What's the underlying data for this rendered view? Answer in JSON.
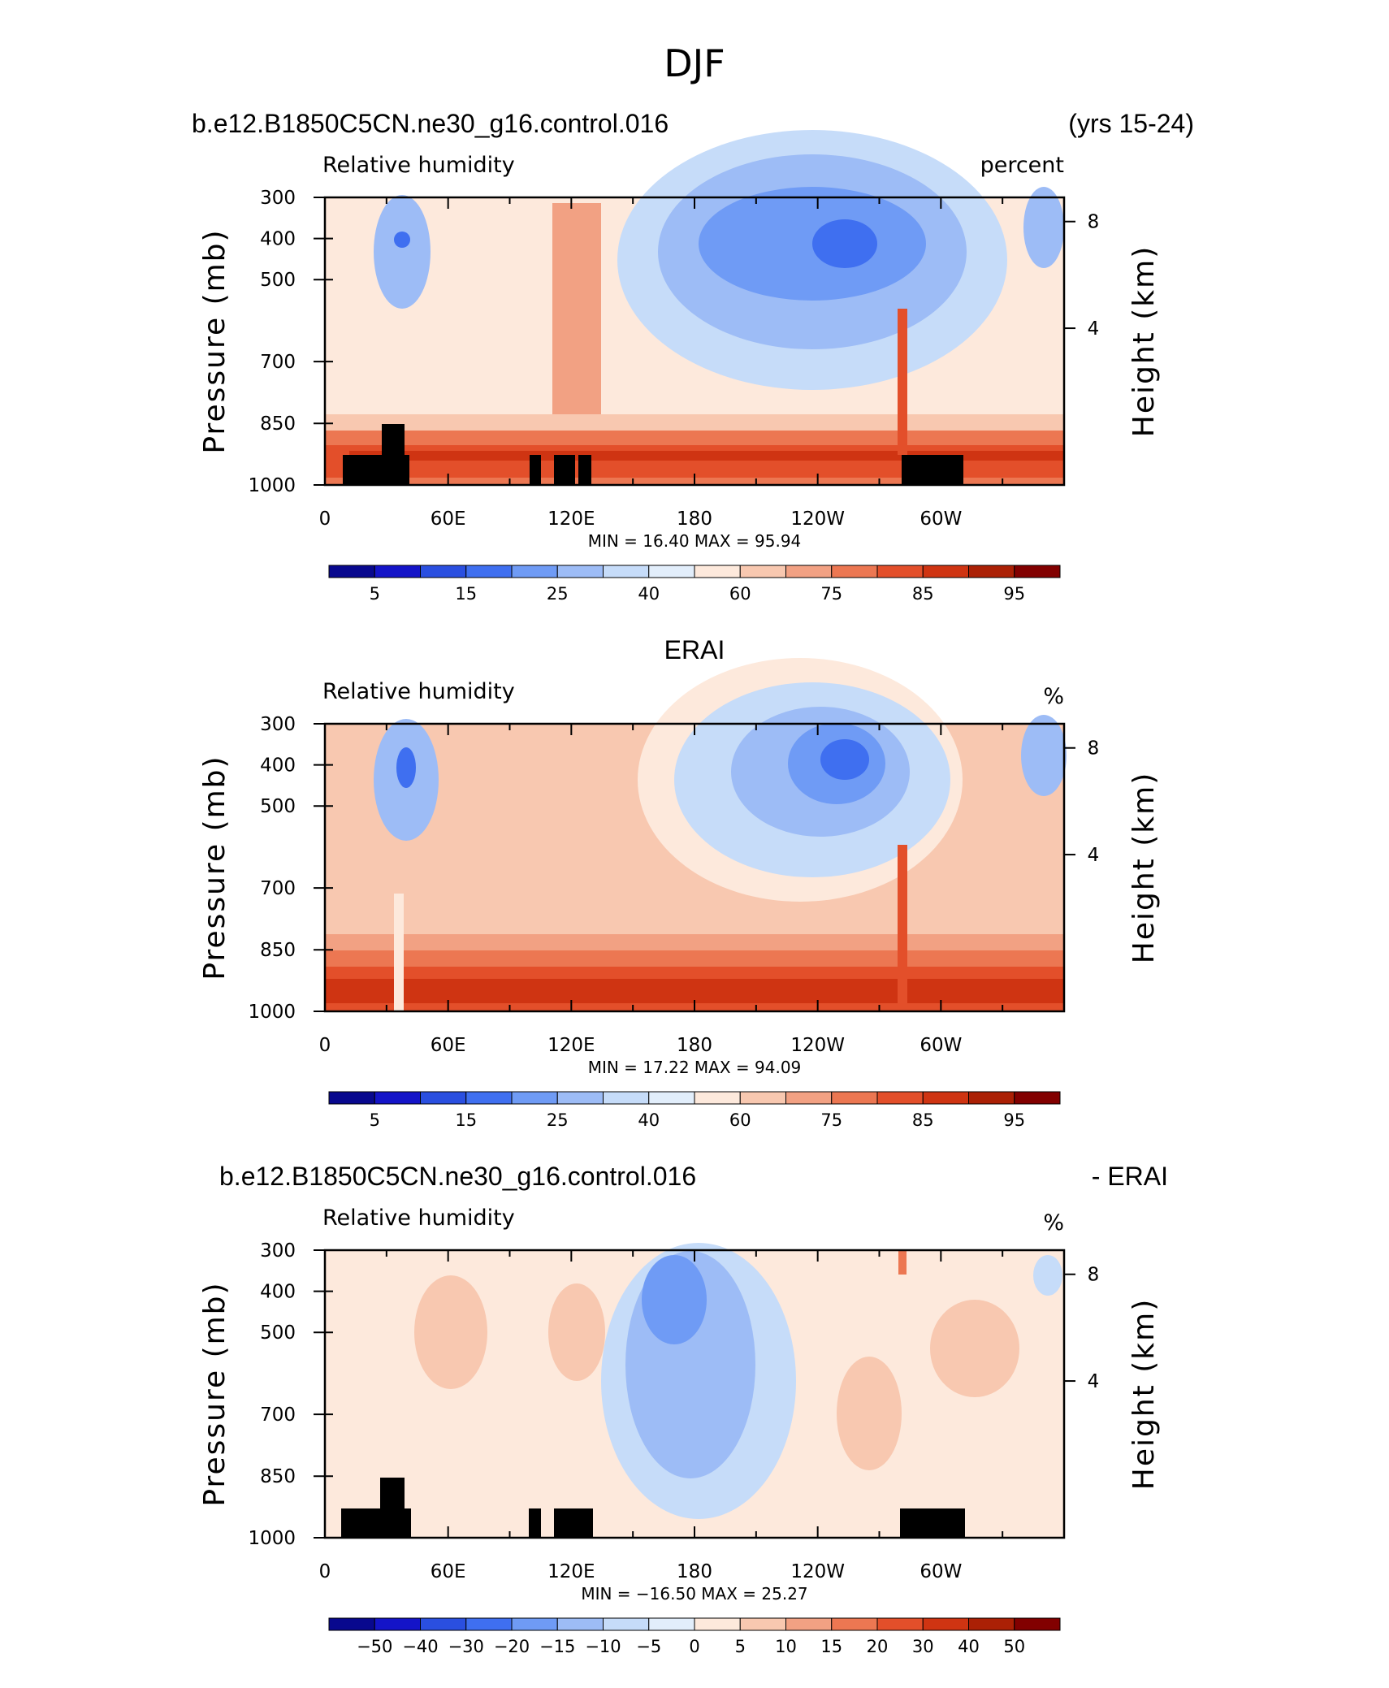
{
  "figure_title": "DJF",
  "panels": [
    {
      "title_left": "b.e12.B1850C5CN.ne30_g16.control.016",
      "title_center": "",
      "title_right": "(yrs 15-24)",
      "variable_label": "Relative humidity",
      "units_label": "percent",
      "minmax": "MIN =    16.40   MAX =    95.94"
    },
    {
      "title_left": "",
      "title_center": "ERAI",
      "title_right": "",
      "variable_label": "Relative humidity",
      "units_label": "%",
      "minmax": "MIN =    17.22   MAX =    94.09"
    },
    {
      "title_left": "b.e12.B1850C5CN.ne30_g16.control.016",
      "title_center": "",
      "title_right": "- ERAI",
      "variable_label": "Relative humidity",
      "units_label": "%",
      "minmax": "MIN =  −16.50   MAX =    25.27"
    }
  ],
  "chart_data": [
    {
      "type": "heatmap",
      "title": "b.e12.B1850C5CN.ne30_g16.control.016",
      "subtitle": "(yrs 15-24)",
      "variable": "Relative humidity",
      "units": "percent",
      "ylabel": "Pressure (mb)",
      "ylabel_right": "Height (km)",
      "x_tick_labels": [
        "0",
        "60E",
        "120E",
        "180",
        "120W",
        "60W"
      ],
      "y_tick_labels": [
        "300",
        "400",
        "500",
        "700",
        "850",
        "1000"
      ],
      "right_tick_labels": [
        "8",
        "4"
      ],
      "min": 16.4,
      "max": 95.94,
      "colorbar_labels": [
        "5",
        "15",
        "25",
        "40",
        "60",
        "75",
        "85",
        "95"
      ]
    },
    {
      "type": "heatmap",
      "title": "ERAI",
      "variable": "Relative humidity",
      "units": "%",
      "ylabel": "Pressure (mb)",
      "ylabel_right": "Height (km)",
      "x_tick_labels": [
        "0",
        "60E",
        "120E",
        "180",
        "120W",
        "60W"
      ],
      "y_tick_labels": [
        "300",
        "400",
        "500",
        "700",
        "850",
        "1000"
      ],
      "right_tick_labels": [
        "8",
        "4"
      ],
      "min": 17.22,
      "max": 94.09,
      "colorbar_labels": [
        "5",
        "15",
        "25",
        "40",
        "60",
        "75",
        "85",
        "95"
      ]
    },
    {
      "type": "heatmap",
      "title": "b.e12.B1850C5CN.ne30_g16.control.016",
      "subtitle": "- ERAI",
      "variable": "Relative humidity",
      "units": "%",
      "ylabel": "Pressure (mb)",
      "ylabel_right": "Height (km)",
      "x_tick_labels": [
        "0",
        "60E",
        "120E",
        "180",
        "120W",
        "60W"
      ],
      "y_tick_labels": [
        "300",
        "400",
        "500",
        "700",
        "850",
        "1000"
      ],
      "right_tick_labels": [
        "8",
        "4"
      ],
      "min": -16.5,
      "max": 25.27,
      "colorbar_labels": [
        "−50",
        "−40",
        "−30",
        "−20",
        "−15",
        "−10",
        "−5",
        "0",
        "5",
        "10",
        "15",
        "20",
        "30",
        "40",
        "50"
      ]
    }
  ],
  "colorbar_colors": [
    "#08088e",
    "#1414c8",
    "#2a4fe0",
    "#3f6ff0",
    "#6f9bf5",
    "#9dbcf6",
    "#c6dcf9",
    "#e2eefb",
    "#fde9dc",
    "#f8c8b0",
    "#f2a183",
    "#ec7752",
    "#e34f2a",
    "#cf3412",
    "#ab2005",
    "#820000"
  ],
  "axes": {
    "ylabel": "Pressure (mb)",
    "ylabel_right": "Height (km)"
  }
}
